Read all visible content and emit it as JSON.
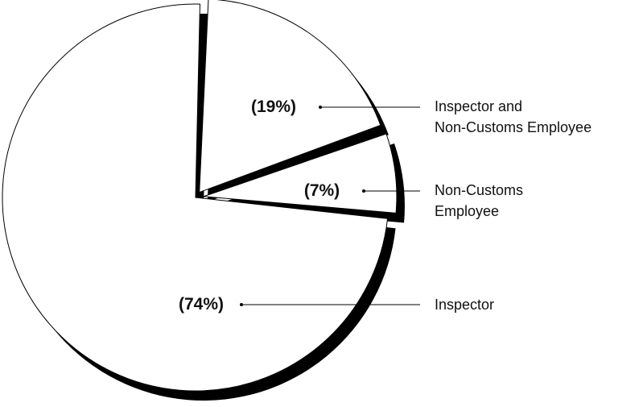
{
  "chart_data": {
    "type": "pie",
    "categories": [
      "Inspector and\nNon-Customs Employee",
      "Non-Customs\nEmployee",
      "Inspector"
    ],
    "values": [
      19,
      7,
      74
    ],
    "value_labels": [
      "(19%)",
      "(7%)",
      "(74%)"
    ]
  }
}
